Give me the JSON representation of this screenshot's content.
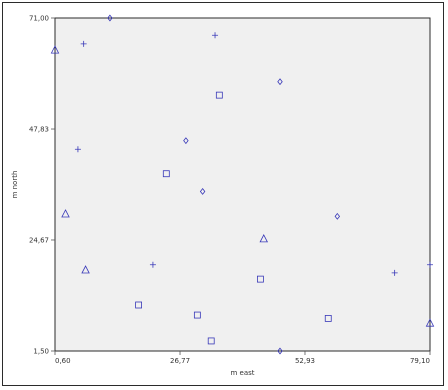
{
  "chart_data": {
    "type": "scatter",
    "title": "",
    "xlabel": "m east",
    "ylabel": "m north",
    "xlim": [
      0.6,
      79.1
    ],
    "ylim": [
      1.5,
      71.0
    ],
    "x_ticks": [
      "0,60",
      "26,77",
      "52,93",
      "79,10"
    ],
    "x_tick_values": [
      0.6,
      26.77,
      52.93,
      79.1
    ],
    "y_ticks": [
      "1,50",
      "24,67",
      "47,83",
      "71,00"
    ],
    "y_tick_values": [
      1.5,
      24.67,
      47.83,
      71.0
    ],
    "grid": false,
    "marker_color": "#3838b8",
    "frame_color": "#2b2b2b",
    "plot_background": "#f0f0f0",
    "series": [
      {
        "marker": "diamond",
        "points": [
          {
            "x": 12.1,
            "y": 71.0
          },
          {
            "x": 47.7,
            "y": 57.7
          },
          {
            "x": 28.0,
            "y": 45.4
          },
          {
            "x": 31.5,
            "y": 34.8
          },
          {
            "x": 59.7,
            "y": 29.6
          },
          {
            "x": 47.7,
            "y": 1.5
          }
        ]
      },
      {
        "marker": "plus",
        "points": [
          {
            "x": 6.6,
            "y": 65.6
          },
          {
            "x": 34.1,
            "y": 67.4
          },
          {
            "x": 5.4,
            "y": 43.6
          },
          {
            "x": 21.1,
            "y": 19.5
          },
          {
            "x": 71.7,
            "y": 17.8
          },
          {
            "x": 79.1,
            "y": 19.5
          }
        ]
      },
      {
        "marker": "square",
        "points": [
          {
            "x": 35.0,
            "y": 54.9
          },
          {
            "x": 23.9,
            "y": 38.5
          },
          {
            "x": 18.1,
            "y": 11.1
          },
          {
            "x": 30.4,
            "y": 9.0
          },
          {
            "x": 43.6,
            "y": 16.5
          },
          {
            "x": 57.8,
            "y": 8.3
          },
          {
            "x": 33.3,
            "y": 3.6
          }
        ]
      },
      {
        "marker": "triangle",
        "points": [
          {
            "x": 0.6,
            "y": 64.3
          },
          {
            "x": 2.8,
            "y": 30.1
          },
          {
            "x": 7.0,
            "y": 18.4
          },
          {
            "x": 44.3,
            "y": 24.9
          },
          {
            "x": 79.1,
            "y": 7.3
          }
        ]
      }
    ]
  }
}
